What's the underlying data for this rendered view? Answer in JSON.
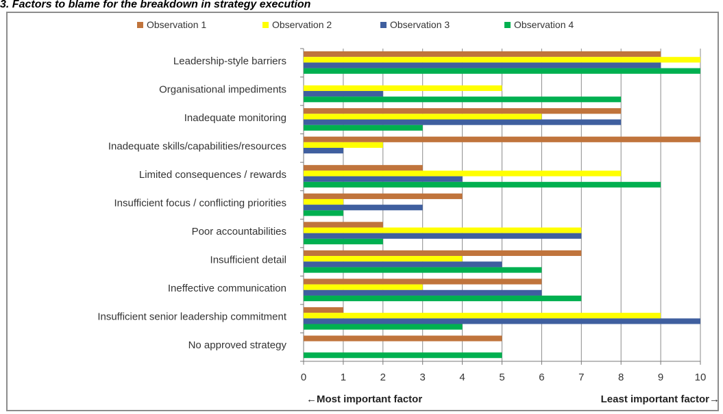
{
  "figure": {
    "title": "3. Factors to blame for the breakdown in strategy execution"
  },
  "chart_data": {
    "type": "bar",
    "orientation": "horizontal",
    "categories": [
      "Leadership-style barriers",
      "Organisational impediments",
      "Inadequate monitoring",
      "Inadequate skills/capabilities/resources",
      "Limited consequences / rewards",
      "Insufficient focus / conflicting priorities",
      "Poor accountabilities",
      "Insufficient detail",
      "Ineffective communication",
      "Insufficient senior leadership commitment",
      "No approved strategy"
    ],
    "series": [
      {
        "name": "Observation 1",
        "color": "#c0743c",
        "values": [
          9,
          0,
          8,
          10,
          3,
          4,
          2,
          7,
          6,
          1,
          5
        ]
      },
      {
        "name": "Observation 2",
        "color": "#ffff00",
        "values": [
          10,
          5,
          6,
          2,
          8,
          1,
          7,
          4,
          3,
          9,
          0
        ]
      },
      {
        "name": "Observation 3",
        "color": "#3f5f9f",
        "values": [
          9,
          2,
          8,
          1,
          4,
          3,
          7,
          5,
          6,
          10,
          0
        ]
      },
      {
        "name": "Observation 4",
        "color": "#00b050",
        "values": [
          10,
          8,
          3,
          0,
          9,
          1,
          2,
          6,
          7,
          4,
          5
        ]
      }
    ],
    "xlim": [
      0,
      10
    ],
    "xticks": [
      "0",
      "1",
      "2",
      "3",
      "4",
      "5",
      "6",
      "7",
      "8",
      "9",
      "10"
    ],
    "grid": "vertical",
    "legend_position": "top",
    "annotations": {
      "left": "←Most important factor",
      "right": "Least important factor→"
    }
  }
}
